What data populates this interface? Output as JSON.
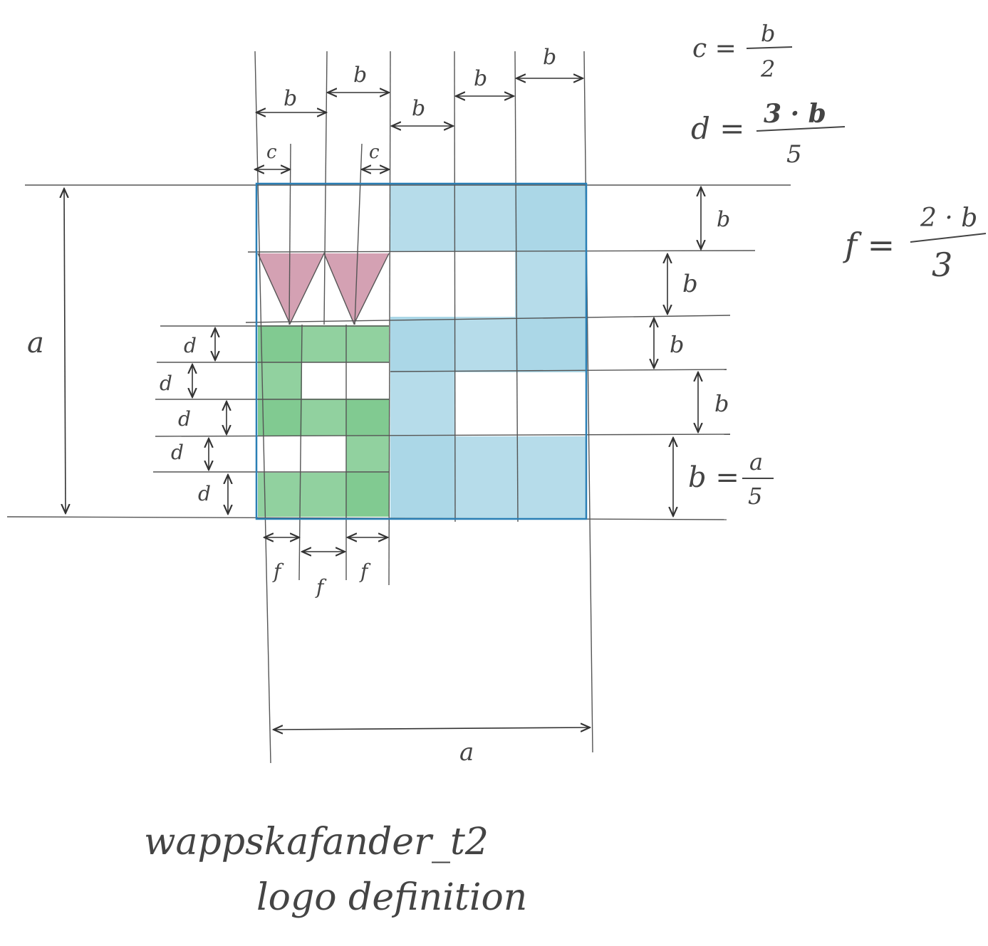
{
  "labels": {
    "a": "a",
    "b": "b",
    "c": "c",
    "d": "d",
    "f": "f"
  },
  "formulas": {
    "c_lhs": "c =",
    "c_num": "b",
    "c_den": "2",
    "d_lhs": "d =",
    "d_num": "3 · b",
    "d_den": "5",
    "f_lhs": "f =",
    "f_num": "2 · b",
    "f_den": "3",
    "b_lhs": "b =",
    "b_num": "a",
    "b_den": "5"
  },
  "caption": {
    "line1": "wappskafander_t2",
    "line2": "logo definition"
  },
  "colors": {
    "blue_fill": "#a9d6e6",
    "green_fill": "#7ec98e",
    "pink_fill": "#c98aa0",
    "blue_edge": "#2a7fb5",
    "pencil": "#555555"
  }
}
